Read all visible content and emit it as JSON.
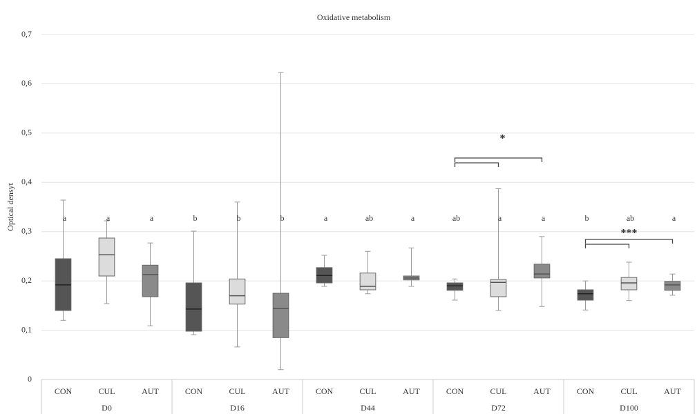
{
  "chart_data": {
    "type": "box",
    "title": "Oxidative metabolism",
    "y_label": "Optical densyt",
    "categories": [
      "CON",
      "CUL",
      "AUT",
      "CON",
      "CUL",
      "AUT",
      "CON",
      "CUL",
      "AUT",
      "CON",
      "CUL",
      "AUT",
      "CON",
      "CUL",
      "AUT"
    ],
    "groups": [
      "D0",
      "D16",
      "D44",
      "D72",
      "D100"
    ],
    "colors": [
      "#555555",
      "#dcdcdc",
      "#8a8a8a"
    ],
    "boxes": [
      {
        "min": 0.12,
        "q1": 0.14,
        "median": 0.192,
        "q3": 0.245,
        "max": 0.364
      },
      {
        "min": 0.154,
        "q1": 0.21,
        "median": 0.253,
        "q3": 0.287,
        "max": 0.322
      },
      {
        "min": 0.109,
        "q1": 0.168,
        "median": 0.213,
        "q3": 0.232,
        "max": 0.277
      },
      {
        "min": 0.091,
        "q1": 0.098,
        "median": 0.143,
        "q3": 0.196,
        "max": 0.301
      },
      {
        "min": 0.066,
        "q1": 0.153,
        "median": 0.17,
        "q3": 0.204,
        "max": 0.36
      },
      {
        "min": 0.02,
        "q1": 0.085,
        "median": 0.144,
        "q3": 0.175,
        "max": 0.623
      },
      {
        "min": 0.189,
        "q1": 0.196,
        "median": 0.211,
        "q3": 0.227,
        "max": 0.252
      },
      {
        "min": 0.174,
        "q1": 0.182,
        "median": 0.189,
        "q3": 0.216,
        "max": 0.26
      },
      {
        "min": 0.189,
        "q1": 0.202,
        "median": 0.206,
        "q3": 0.21,
        "max": 0.267
      },
      {
        "min": 0.161,
        "q1": 0.181,
        "median": 0.19,
        "q3": 0.196,
        "max": 0.204
      },
      {
        "min": 0.14,
        "q1": 0.168,
        "median": 0.197,
        "q3": 0.203,
        "max": 0.387
      },
      {
        "min": 0.148,
        "q1": 0.206,
        "median": 0.214,
        "q3": 0.234,
        "max": 0.29
      },
      {
        "min": 0.141,
        "q1": 0.161,
        "median": 0.174,
        "q3": 0.182,
        "max": 0.2
      },
      {
        "min": 0.16,
        "q1": 0.182,
        "median": 0.196,
        "q3": 0.207,
        "max": 0.238
      },
      {
        "min": 0.171,
        "q1": 0.181,
        "median": 0.192,
        "q3": 0.199,
        "max": 0.214
      }
    ],
    "letters": [
      "a",
      "a",
      "a",
      "b",
      "b",
      "b",
      "a",
      "ab",
      "a",
      "ab",
      "a",
      "a",
      "b",
      "ab",
      "a"
    ],
    "significance": [
      "*",
      "***"
    ],
    "ylim": [
      0,
      0.7
    ],
    "yticks": [
      0,
      {
        "value": 0.1,
        "label": "0,1"
      },
      {
        "value": 0.2,
        "label": "0,2"
      },
      {
        "value": 0.3,
        "label": "0,3"
      },
      {
        "value": 0.4,
        "label": "0,4"
      },
      {
        "value": 0.5,
        "label": "0,5"
      },
      {
        "value": 0.6,
        "label": "0,6"
      },
      {
        "value": 0.7,
        "label": "0,7"
      }
    ],
    "grid": true
  }
}
